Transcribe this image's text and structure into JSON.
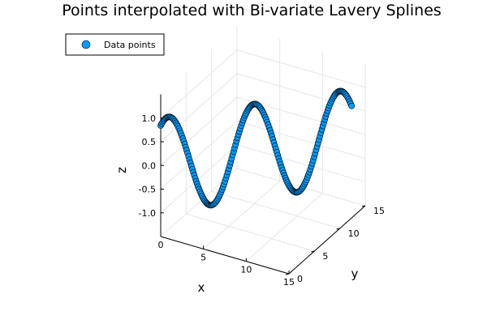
{
  "chart_data": {
    "type": "scatter3d",
    "title": "Points interpolated with Bi-variate Lavery Splines",
    "xlabel": "x",
    "ylabel": "y",
    "zlabel": "z",
    "xlim": [
      0,
      15
    ],
    "ylim": [
      0,
      15
    ],
    "zlim": [
      -1.5,
      1.5
    ],
    "x_ticks": [
      0,
      5,
      10,
      15
    ],
    "y_ticks": [
      0,
      5,
      10,
      15
    ],
    "z_ticks": [
      -1.0,
      -0.5,
      0.0,
      0.5,
      1.0
    ],
    "z_tick_labels": [
      "-1.0",
      "-0.5",
      "0.0",
      "0.5",
      "1.0"
    ],
    "legend": {
      "label": "Data points",
      "placement": "top-left"
    },
    "grid": true,
    "series": [
      {
        "name": "Data points",
        "color": "#009AFA",
        "edge_color": "#000000",
        "x_range": [
          0,
          14
        ],
        "y_range": [
          0,
          14
        ],
        "point_count": 200,
        "z_formula": "sin(x + 1)"
      }
    ]
  }
}
